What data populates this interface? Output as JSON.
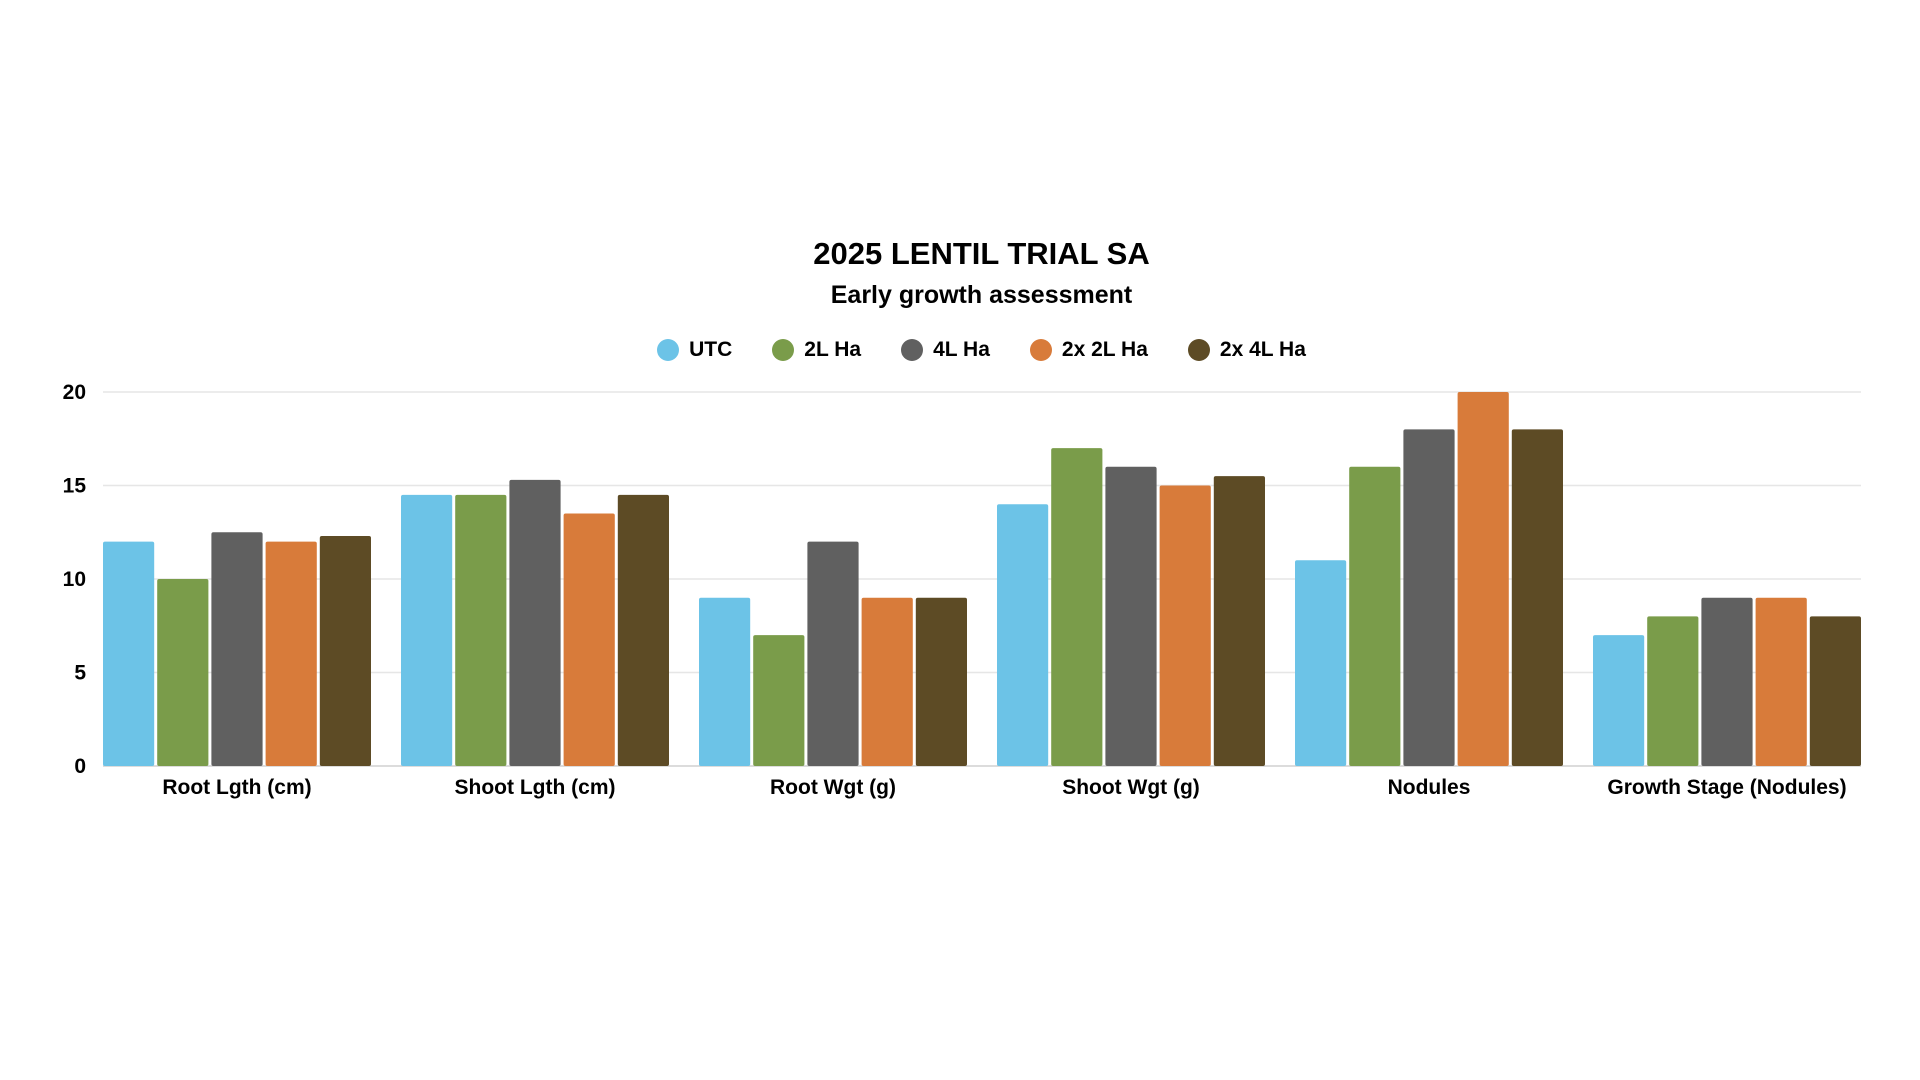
{
  "chart_data": {
    "type": "bar",
    "title": "2025 LENTIL TRIAL SA",
    "subtitle": "Early growth assessment",
    "xlabel": "",
    "ylabel": "",
    "ylim": [
      0,
      20
    ],
    "yticks": [
      "0",
      "5",
      "10",
      "15",
      "20"
    ],
    "grid": true,
    "legend_position": "top-center",
    "categories": [
      "Root Lgth (cm)",
      "Shoot Lgth (cm)",
      "Root Wgt (g)",
      "Shoot Wgt (g)",
      "Nodules",
      "Growth Stage (Nodules)"
    ],
    "series": [
      {
        "name": "UTC",
        "color": "#6cc3e7",
        "values": [
          12,
          14.5,
          9,
          14,
          11,
          7
        ]
      },
      {
        "name": "2L Ha",
        "color": "#7a9c4a",
        "values": [
          10,
          14.5,
          7,
          17,
          16,
          8
        ]
      },
      {
        "name": "4L Ha",
        "color": "#606060",
        "values": [
          12.5,
          15.3,
          12,
          16,
          18,
          9
        ]
      },
      {
        "name": "2x 2L Ha",
        "color": "#d87b3a",
        "values": [
          12,
          13.5,
          9,
          15,
          20,
          9
        ]
      },
      {
        "name": "2x 4L Ha",
        "color": "#5d4b25",
        "values": [
          12.3,
          14.5,
          9,
          15.5,
          18,
          8
        ]
      }
    ]
  }
}
